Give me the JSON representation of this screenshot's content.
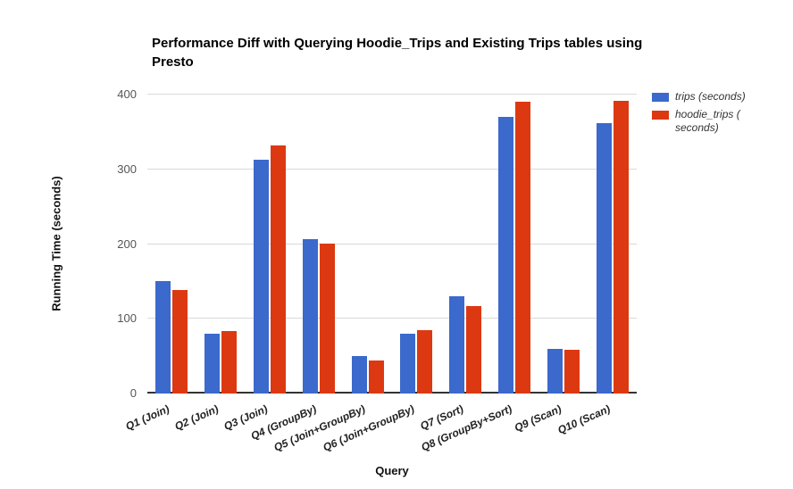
{
  "title": "Performance Diff with Querying Hoodie_Trips and Existing Trips tables using Presto",
  "axes": {
    "y_title": "Running Time (seconds)",
    "x_title": "Query",
    "y_ticks": [
      0,
      100,
      200,
      300,
      400
    ],
    "y_max": 400,
    "grid_color": "#d9d9d9",
    "baseline_color": "#333333"
  },
  "legend": [
    {
      "label": "trips (seconds)",
      "color": "#3B69CC"
    },
    {
      "label": "hoodie_trips ( seconds)",
      "color": "#DC3912"
    }
  ],
  "chart_data": {
    "type": "bar",
    "title": "Performance Diff with Querying Hoodie_Trips and Existing Trips tables using Presto",
    "xlabel": "Query",
    "ylabel": "Running Time (seconds)",
    "ylim": [
      0,
      400
    ],
    "grid": true,
    "legend_position": "right",
    "categories": [
      "Q1 (Join)",
      "Q2 (Join)",
      "Q3 (Join)",
      "Q4 (GroupBy)",
      "Q5 (Join+GroupBy)",
      "Q6 (Join+GroupBy)",
      "Q7 (Sort)",
      "Q8 (GroupBy+Sort)",
      "Q9 (Scan)",
      "Q10 (Scan)"
    ],
    "series": [
      {
        "name": "trips (seconds)",
        "color": "#3B69CC",
        "values": [
          150,
          80,
          313,
          207,
          50,
          80,
          130,
          370,
          60,
          362
        ]
      },
      {
        "name": "hoodie_trips ( seconds)",
        "color": "#DC3912",
        "values": [
          138,
          84,
          332,
          201,
          44,
          85,
          117,
          390,
          59,
          392
        ]
      }
    ]
  }
}
